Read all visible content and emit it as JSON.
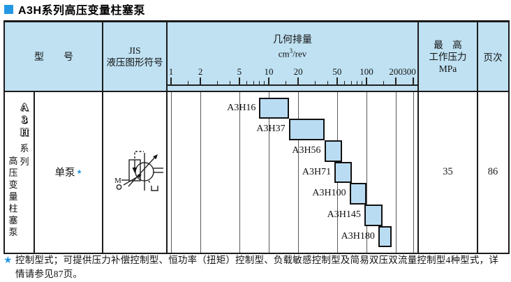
{
  "title": "A3H系列高压变量柱塞泵",
  "table": {
    "header": {
      "model_label": "型　　号",
      "jis_line1": "JIS",
      "jis_line2": "液压图形符号",
      "pressure_line1": "最　高",
      "pressure_line2": "工作压力",
      "pressure_line3": "MPa",
      "page_label": "页次"
    },
    "body": {
      "series_label": {
        "latin": [
          "A",
          "3",
          "H"
        ],
        "suffix": "系列",
        "desc": "高压变量柱塞泵"
      },
      "pump_type": "单泵",
      "pump_type_star": "★",
      "jis_symbol": "variable-displacement-pump-with-pressure-compensator",
      "max_pressure": "35",
      "page": "86"
    }
  },
  "chart_data": {
    "type": "bar",
    "orientation": "horizontal-range",
    "title": "几何排量",
    "xlabel": "cm³/rev",
    "unit_base": "cm",
    "unit_sup": "3",
    "unit_rest": "/rev",
    "x_scale": "log",
    "xlim": [
      1,
      300
    ],
    "x_ticks": [
      1,
      2,
      5,
      10,
      20,
      50,
      100,
      200,
      300
    ],
    "x_minor_ticks": [
      1.5,
      3,
      4,
      6,
      7,
      8,
      9,
      15,
      30,
      40,
      60,
      70,
      80,
      90,
      150
    ],
    "grid": true,
    "series": [
      {
        "name": "A3H16",
        "range": [
          8,
          16
        ]
      },
      {
        "name": "A3H37",
        "range": [
          16,
          37
        ]
      },
      {
        "name": "A3H56",
        "range": [
          37,
          56
        ]
      },
      {
        "name": "A3H71",
        "range": [
          47,
          71
        ]
      },
      {
        "name": "A3H100",
        "range": [
          67,
          100
        ]
      },
      {
        "name": "A3H145",
        "range": [
          95,
          145
        ]
      },
      {
        "name": "A3H180",
        "range": [
          132,
          180
        ]
      }
    ],
    "bar_fill": "#b9dcf3",
    "bar_border": "#111111"
  },
  "footnote": {
    "star": "★",
    "lines": [
      "控制型式；可提供压力补偿控制型、恒功率（扭矩）控制型、负载敏感控制型及简易双压双流量控制型4种型式，详",
      "情请参见87页。"
    ]
  },
  "colors": {
    "accent_blue": "#2497e3",
    "header_bg": "#bfe1f2",
    "bar_fill": "#b9dcf3",
    "border_dark": "#1b1b1b"
  }
}
